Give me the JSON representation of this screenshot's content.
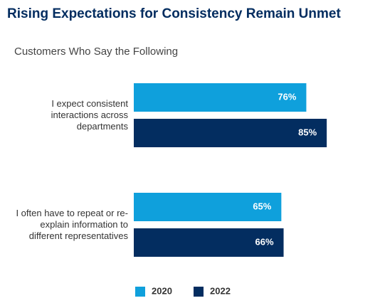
{
  "chart_data": {
    "type": "bar",
    "orientation": "horizontal",
    "title": "Rising Expectations for Consistency Remain Unmet",
    "subtitle": "Customers Who Say the Following",
    "categories": [
      "I expect consistent interactions across departments",
      "I often have to repeat or re-explain information to different representatives"
    ],
    "series": [
      {
        "name": "2020",
        "color": "#0fa0dc",
        "values": [
          76,
          65
        ],
        "value_labels": [
          "76%",
          "65%"
        ]
      },
      {
        "name": "2022",
        "color": "#032d60",
        "values": [
          85,
          66
        ],
        "value_labels": [
          "85%",
          "66%"
        ]
      }
    ],
    "xlim": [
      0,
      100
    ],
    "grid": false,
    "legend": "bottom"
  }
}
